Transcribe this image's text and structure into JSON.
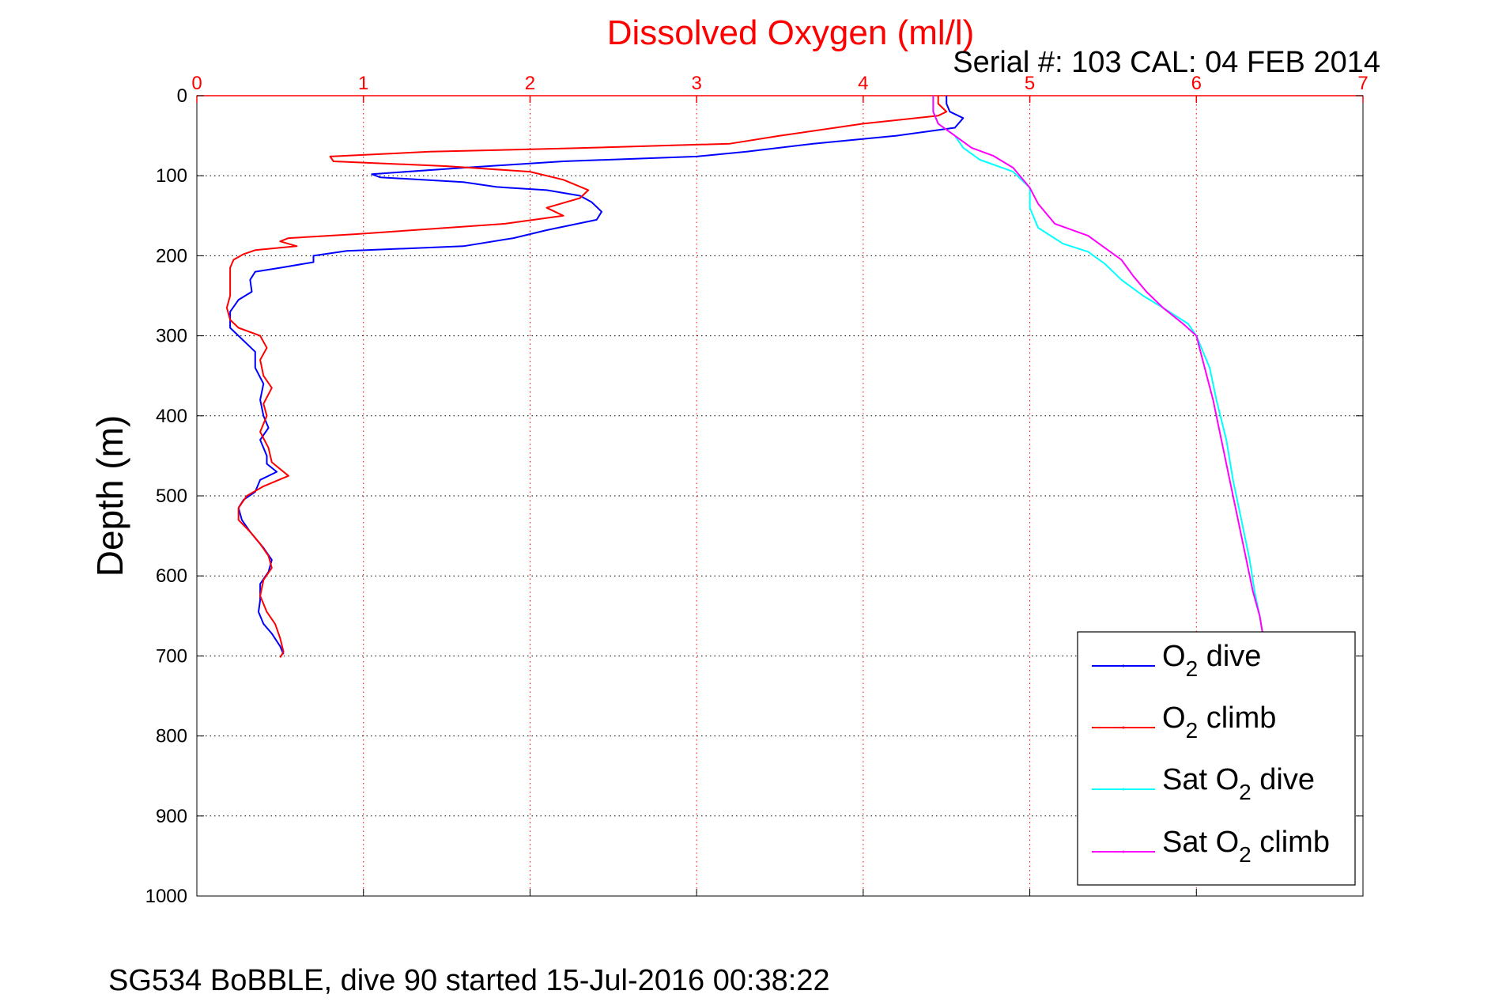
{
  "chart_data": {
    "type": "line",
    "title": "Dissolved Oxygen (ml/l)",
    "subtitle": "Serial #: 103  CAL: 04 FEB 2014",
    "footer": "SG534 BoBBLE, dive 90 started 15-Jul-2016 00:38:22",
    "xlabel": "",
    "ylabel": "Depth (m)",
    "xlim": [
      0,
      7
    ],
    "ylim": [
      0,
      1000
    ],
    "y_reversed": true,
    "x_axis_position": "top",
    "x_ticks": [
      "0",
      "1",
      "2",
      "3",
      "4",
      "5",
      "6",
      "7"
    ],
    "y_ticks": [
      "0",
      "100",
      "200",
      "300",
      "400",
      "500",
      "600",
      "700",
      "800",
      "900",
      "1000"
    ],
    "grid": true,
    "legend_position": "bottom-right",
    "colors": {
      "title": "#ff0000",
      "x_axis": "#ff0000",
      "grid_x": "#ff0000",
      "grid_y": "#000000"
    },
    "series": [
      {
        "name": "O2 dive",
        "legend": {
          "base": "O",
          "sub": "2",
          "suffix": " dive"
        },
        "color": "#0000ff",
        "points": [
          [
            4.5,
            0
          ],
          [
            4.5,
            10
          ],
          [
            4.52,
            20
          ],
          [
            4.6,
            28
          ],
          [
            4.55,
            40
          ],
          [
            4.2,
            50
          ],
          [
            3.7,
            60
          ],
          [
            3.3,
            70
          ],
          [
            3.0,
            76
          ],
          [
            2.2,
            82
          ],
          [
            1.6,
            90
          ],
          [
            1.05,
            98
          ],
          [
            1.1,
            102
          ],
          [
            1.6,
            108
          ],
          [
            1.8,
            114
          ],
          [
            2.1,
            118
          ],
          [
            2.3,
            125
          ],
          [
            2.37,
            133
          ],
          [
            2.43,
            145
          ],
          [
            2.4,
            155
          ],
          [
            2.1,
            168
          ],
          [
            1.9,
            178
          ],
          [
            1.6,
            188
          ],
          [
            0.9,
            194
          ],
          [
            0.7,
            200
          ],
          [
            0.7,
            208
          ],
          [
            0.5,
            215
          ],
          [
            0.35,
            220
          ],
          [
            0.32,
            230
          ],
          [
            0.33,
            245
          ],
          [
            0.25,
            255
          ],
          [
            0.2,
            270
          ],
          [
            0.2,
            290
          ],
          [
            0.25,
            300
          ],
          [
            0.35,
            320
          ],
          [
            0.35,
            340
          ],
          [
            0.4,
            360
          ],
          [
            0.38,
            380
          ],
          [
            0.4,
            400
          ],
          [
            0.43,
            415
          ],
          [
            0.38,
            430
          ],
          [
            0.42,
            450
          ],
          [
            0.42,
            460
          ],
          [
            0.48,
            470
          ],
          [
            0.38,
            480
          ],
          [
            0.35,
            495
          ],
          [
            0.28,
            505
          ],
          [
            0.25,
            515
          ],
          [
            0.27,
            530
          ],
          [
            0.32,
            545
          ],
          [
            0.4,
            565
          ],
          [
            0.45,
            580
          ],
          [
            0.43,
            595
          ],
          [
            0.38,
            610
          ],
          [
            0.38,
            630
          ],
          [
            0.37,
            645
          ],
          [
            0.4,
            660
          ],
          [
            0.45,
            672
          ],
          [
            0.5,
            688
          ],
          [
            0.52,
            698
          ]
        ]
      },
      {
        "name": "O2 climb",
        "legend": {
          "base": "O",
          "sub": "2",
          "suffix": " climb"
        },
        "color": "#ff0000",
        "points": [
          [
            4.45,
            0
          ],
          [
            4.45,
            10
          ],
          [
            4.5,
            20
          ],
          [
            4.45,
            25
          ],
          [
            4.0,
            35
          ],
          [
            3.5,
            50
          ],
          [
            3.2,
            60
          ],
          [
            2.2,
            66
          ],
          [
            1.4,
            70
          ],
          [
            0.8,
            76
          ],
          [
            0.82,
            82
          ],
          [
            1.5,
            88
          ],
          [
            2.0,
            95
          ],
          [
            2.2,
            105
          ],
          [
            2.35,
            118
          ],
          [
            2.3,
            128
          ],
          [
            2.1,
            140
          ],
          [
            2.2,
            150
          ],
          [
            1.85,
            160
          ],
          [
            1.3,
            168
          ],
          [
            0.95,
            173
          ],
          [
            0.55,
            178
          ],
          [
            0.5,
            182
          ],
          [
            0.6,
            188
          ],
          [
            0.35,
            193
          ],
          [
            0.28,
            198
          ],
          [
            0.22,
            205
          ],
          [
            0.2,
            215
          ],
          [
            0.2,
            230
          ],
          [
            0.2,
            250
          ],
          [
            0.18,
            265
          ],
          [
            0.2,
            280
          ],
          [
            0.25,
            290
          ],
          [
            0.38,
            300
          ],
          [
            0.42,
            315
          ],
          [
            0.38,
            330
          ],
          [
            0.4,
            350
          ],
          [
            0.45,
            365
          ],
          [
            0.4,
            385
          ],
          [
            0.42,
            400
          ],
          [
            0.38,
            420
          ],
          [
            0.43,
            440
          ],
          [
            0.45,
            458
          ],
          [
            0.55,
            475
          ],
          [
            0.4,
            488
          ],
          [
            0.3,
            500
          ],
          [
            0.25,
            515
          ],
          [
            0.25,
            530
          ],
          [
            0.32,
            545
          ],
          [
            0.38,
            560
          ],
          [
            0.43,
            575
          ],
          [
            0.45,
            590
          ],
          [
            0.4,
            605
          ],
          [
            0.38,
            625
          ],
          [
            0.42,
            645
          ],
          [
            0.47,
            660
          ],
          [
            0.5,
            678
          ],
          [
            0.52,
            695
          ],
          [
            0.5,
            702
          ]
        ]
      },
      {
        "name": "Sat O2 dive",
        "legend": {
          "base": "Sat O",
          "sub": "2",
          "suffix": " dive"
        },
        "color": "#00ffff",
        "points": [
          [
            4.42,
            0
          ],
          [
            4.42,
            20
          ],
          [
            4.45,
            35
          ],
          [
            4.55,
            50
          ],
          [
            4.6,
            65
          ],
          [
            4.7,
            80
          ],
          [
            4.9,
            95
          ],
          [
            5.0,
            115
          ],
          [
            5.0,
            140
          ],
          [
            5.05,
            165
          ],
          [
            5.2,
            185
          ],
          [
            5.35,
            195
          ],
          [
            5.45,
            210
          ],
          [
            5.55,
            230
          ],
          [
            5.68,
            250
          ],
          [
            5.8,
            265
          ],
          [
            5.95,
            285
          ],
          [
            6.0,
            300
          ],
          [
            6.08,
            340
          ],
          [
            6.12,
            380
          ],
          [
            6.18,
            430
          ],
          [
            6.22,
            480
          ],
          [
            6.27,
            530
          ],
          [
            6.32,
            580
          ],
          [
            6.35,
            620
          ],
          [
            6.38,
            650
          ],
          [
            6.4,
            675
          ]
        ]
      },
      {
        "name": "Sat O2 climb",
        "legend": {
          "base": "Sat O",
          "sub": "2",
          "suffix": " climb"
        },
        "color": "#ff00ff",
        "points": [
          [
            4.42,
            0
          ],
          [
            4.42,
            20
          ],
          [
            4.45,
            35
          ],
          [
            4.55,
            50
          ],
          [
            4.65,
            65
          ],
          [
            4.78,
            75
          ],
          [
            4.9,
            90
          ],
          [
            5.0,
            115
          ],
          [
            5.05,
            135
          ],
          [
            5.15,
            160
          ],
          [
            5.35,
            175
          ],
          [
            5.45,
            190
          ],
          [
            5.55,
            205
          ],
          [
            5.62,
            225
          ],
          [
            5.7,
            245
          ],
          [
            5.8,
            265
          ],
          [
            5.92,
            285
          ],
          [
            6.0,
            300
          ],
          [
            6.05,
            340
          ],
          [
            6.1,
            380
          ],
          [
            6.15,
            430
          ],
          [
            6.2,
            480
          ],
          [
            6.25,
            530
          ],
          [
            6.3,
            580
          ],
          [
            6.34,
            620
          ],
          [
            6.38,
            650
          ],
          [
            6.4,
            675
          ]
        ]
      }
    ]
  }
}
